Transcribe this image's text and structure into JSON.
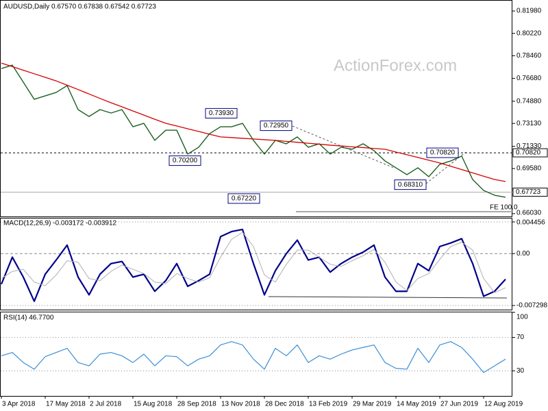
{
  "chart_data": [
    {
      "type": "line",
      "title": "AUDUSD,Daily  0.67570 0.67838 0.67542 0.67723",
      "watermark": "ActionForex.com",
      "categories": [
        "3 Apr 2018",
        null,
        null,
        null,
        "17 May 2018",
        null,
        null,
        null,
        "2 Jul 2018",
        null,
        null,
        null,
        "15 Aug 2018",
        null,
        null,
        null,
        "28 Sep 2018",
        null,
        null,
        null,
        "13 Nov 2018",
        null,
        null,
        null,
        "28 Dec 2018",
        null,
        null,
        null,
        "13 Feb 2019",
        null,
        null,
        null,
        "29 Mar 2019",
        null,
        null,
        null,
        "14 May 2019",
        null,
        null,
        null,
        "27 Jun 2019",
        null,
        null,
        null,
        "12 Aug 2019",
        null,
        null
      ],
      "series": [
        {
          "color": "#1b5e20",
          "values": [
            0.7745,
            0.7772,
            0.7638,
            0.7503,
            0.753,
            0.7557,
            0.7611,
            0.7422,
            0.7368,
            0.7422,
            0.7395,
            0.7422,
            0.7287,
            0.7314,
            0.718,
            0.726,
            0.726,
            0.7072,
            0.7126,
            0.7233,
            0.7287,
            0.7287,
            0.7314,
            0.718,
            0.7072,
            0.718,
            0.7153,
            0.7207,
            0.7126,
            0.7153,
            0.7072,
            0.7126,
            0.711,
            0.7153,
            0.7099,
            0.7018,
            0.6964,
            0.691,
            0.6964,
            0.6894,
            0.6991,
            0.7018,
            0.7056,
            0.6872,
            0.6786,
            0.6748,
            0.6732
          ]
        },
        {
          "color": "#d40000",
          "values": [
            0.7788,
            0.776,
            0.7732,
            0.7704,
            0.7676,
            0.7648,
            0.7614,
            0.758,
            0.7545,
            0.751,
            0.7476,
            0.7444,
            0.7411,
            0.7379,
            0.7346,
            0.7314,
            0.7293,
            0.7271,
            0.725,
            0.7228,
            0.7207,
            0.7202,
            0.7196,
            0.7191,
            0.7185,
            0.718,
            0.7172,
            0.7165,
            0.7157,
            0.715,
            0.7142,
            0.7136,
            0.7129,
            0.7123,
            0.7116,
            0.711,
            0.7088,
            0.7067,
            0.7045,
            0.7024,
            0.7002,
            0.6976,
            0.695,
            0.6924,
            0.6898,
            0.6872,
            0.6856
          ]
        }
      ],
      "ylim": [
        0.6581,
        0.8263
      ],
      "yticks": [
        {
          "value": 0.8198,
          "label": "0.81980"
        },
        {
          "value": 0.8022,
          "label": "0.80220"
        },
        {
          "value": 0.7846,
          "label": "0.78460"
        },
        {
          "value": 0.7668,
          "label": "0.76680"
        },
        {
          "value": 0.7488,
          "label": "0.74880"
        },
        {
          "value": 0.7313,
          "label": "0.73130"
        },
        {
          "value": 0.7133,
          "label": "0.71330"
        },
        {
          "value": 0.6958,
          "label": "0.69580"
        },
        {
          "value": 0.6603,
          "label": "0.66030"
        }
      ],
      "grid": false,
      "annotations": [
        {
          "value": 0.7393,
          "label": "0.73930"
        },
        {
          "value": 0.702,
          "label": "0.70200"
        },
        {
          "value": 0.6722,
          "label": "0.67220"
        },
        {
          "value": 0.7295,
          "label": "0.72950"
        },
        {
          "value": 0.6831,
          "label": "0.68310"
        },
        {
          "value": 0.7082,
          "label": "0.70820"
        }
      ],
      "level": {
        "value": 0.7082,
        "label": "0.70820"
      },
      "current_price": {
        "value": 0.67723,
        "label": "0.67723"
      },
      "fe_label": "FE 100.0"
    },
    {
      "type": "line",
      "title": "MACD(12,26,9) -0.003172 -0.003912",
      "series": [
        {
          "color": "#00008b",
          "values": [
            -0.0043,
            -0.0005,
            -0.0033,
            -0.0067,
            -0.0029,
            -0.0009,
            0.0012,
            -0.0033,
            -0.0058,
            -0.0029,
            -0.0014,
            -0.0011,
            -0.0033,
            -0.0029,
            -0.0053,
            -0.0038,
            -0.0014,
            -0.0046,
            -0.0038,
            -0.0029,
            0.0024,
            0.0031,
            0.0034,
            -0.0014,
            -0.0058,
            -0.0024,
            0.0,
            0.0019,
            -0.0009,
            -0.0005,
            -0.0026,
            -0.0014,
            -0.0005,
            0.0002,
            0.0012,
            -0.0033,
            -0.0053,
            -0.0053,
            -0.0014,
            -0.0024,
            0.001,
            0.0015,
            0.0021,
            -0.0014,
            -0.006,
            -0.0053,
            -0.0036
          ]
        },
        {
          "color": "#b0b0b0",
          "values": [
            -0.0035,
            -0.0025,
            -0.0022,
            -0.004,
            -0.0045,
            -0.003,
            -0.001,
            -0.0012,
            -0.0035,
            -0.0038,
            -0.0025,
            -0.0016,
            -0.0022,
            -0.0028,
            -0.004,
            -0.0042,
            -0.0028,
            -0.0035,
            -0.004,
            -0.0034,
            -0.0005,
            0.002,
            0.003,
            0.001,
            -0.003,
            -0.004,
            -0.0015,
            0.0005,
            0.0005,
            -0.0005,
            -0.0015,
            -0.0018,
            -0.001,
            -0.0003,
            0.0006,
            -0.0012,
            -0.004,
            -0.0052,
            -0.0035,
            -0.0028,
            -0.0008,
            0.001,
            0.0016,
            0.0005,
            -0.0035,
            -0.0055,
            -0.0048
          ]
        }
      ],
      "ylim": [
        -0.007876,
        0.005034
      ],
      "yticks": [
        0.004456,
        {
          "value": 0,
          "label": "0.00"
        },
        -0.007298
      ],
      "grid": true
    },
    {
      "type": "line",
      "title": "RSI(14) 46.7700",
      "series": [
        {
          "color": "#3b8ed6",
          "values": [
            48,
            52,
            40,
            32,
            47,
            52,
            57,
            40,
            36,
            50,
            52,
            48,
            40,
            50,
            36,
            48,
            47,
            36,
            44,
            48,
            61,
            65,
            61,
            44,
            32,
            57,
            48,
            61,
            40,
            48,
            44,
            50,
            55,
            58,
            61,
            40,
            33,
            32,
            57,
            40,
            61,
            65,
            58,
            44,
            28,
            36,
            44
          ]
        }
      ],
      "ylim": [
        0,
        100
      ],
      "yticks": [
        100,
        70,
        30
      ],
      "grid": true
    }
  ]
}
